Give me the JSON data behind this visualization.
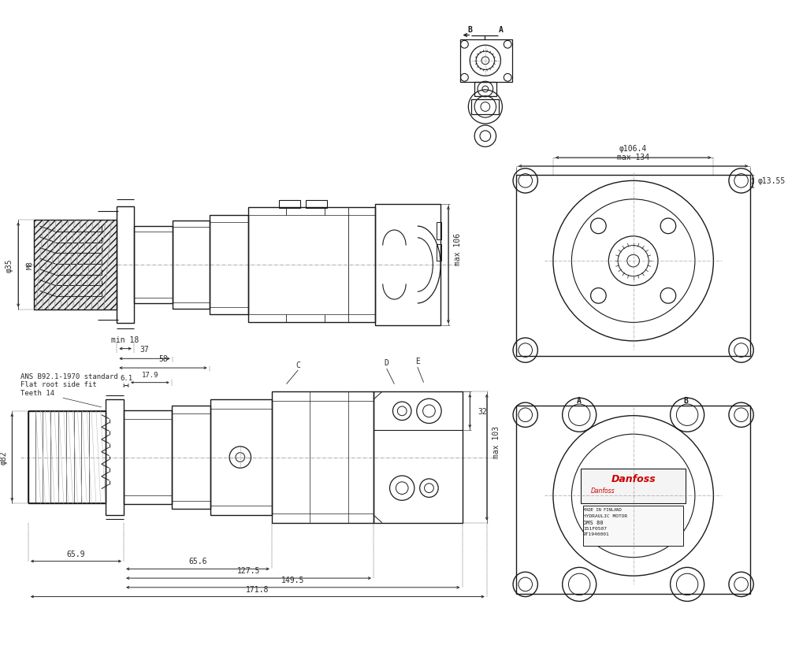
{
  "bg_color": "#ffffff",
  "lc": "#1a1a1a",
  "dc": "#2a2a2a",
  "figsize": [
    10.0,
    8.53
  ],
  "dpi": 100,
  "ann": {
    "dim_35": "φ35",
    "dim_M8": "M8",
    "dim_min18": "min 18",
    "dim_37": "37",
    "dim_58": "58",
    "dim_max106": "max 106",
    "dim_6p1": "6.1",
    "dim_17p9": "17.9",
    "dim_C": "C",
    "dim_D": "D",
    "dim_E": "E",
    "dim_32": "32",
    "dim_max103": "max 103",
    "dim_82": "φ82",
    "dim_65p9": "65.9",
    "dim_65p6": "65.6",
    "dim_127p5": "127.5",
    "dim_149p5": "149.5",
    "dim_171p8": "171.8",
    "dim_max134": "max 134",
    "dim_106p4": "φ106.4",
    "dim_13p55": "φ13.55",
    "std_note": "ANS B92.1-1970 standard\nFlat root side fit\nTeeth 14",
    "label_B": "B",
    "label_A": "A"
  }
}
